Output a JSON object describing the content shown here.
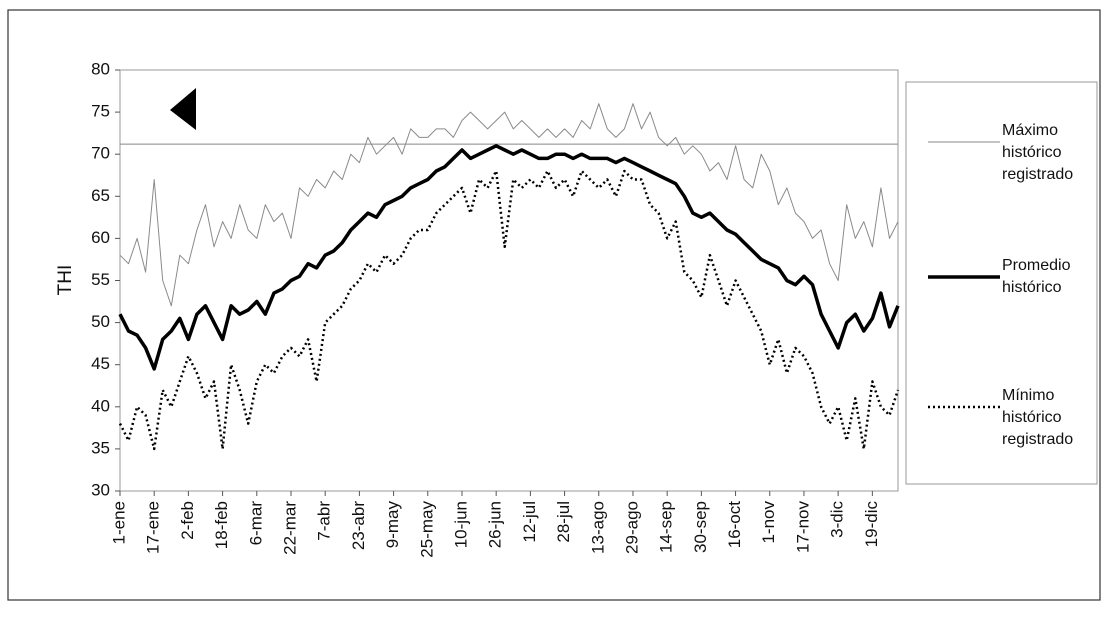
{
  "chart_data": {
    "type": "line",
    "y_label": "THI",
    "categories": [
      "1-ene",
      null,
      null,
      null,
      "17-ene",
      null,
      null,
      null,
      "2-feb",
      null,
      null,
      null,
      "18-feb",
      null,
      null,
      null,
      "6-mar",
      null,
      null,
      null,
      "22-mar",
      null,
      null,
      null,
      "7-abr",
      null,
      null,
      null,
      "23-abr",
      null,
      null,
      null,
      "9-may",
      null,
      null,
      null,
      "25-may",
      null,
      null,
      null,
      "10-jun",
      null,
      null,
      null,
      "26-jun",
      null,
      null,
      null,
      "12-jul",
      null,
      null,
      null,
      "28-jul",
      null,
      null,
      null,
      "13-ago",
      null,
      null,
      null,
      "29-ago",
      null,
      null,
      null,
      "14-sep",
      null,
      null,
      null,
      "30-sep",
      null,
      null,
      null,
      "16-oct",
      null,
      null,
      null,
      "1-nov",
      null,
      null,
      null,
      "17-nov",
      null,
      null,
      null,
      "3-dic",
      null,
      null,
      null,
      "19-dic",
      null,
      null,
      null
    ],
    "series": [
      {
        "name": "Máximo histórico registrado",
        "color": "#8a8a8a",
        "linewidth": 1,
        "linestyle": "solid",
        "values": [
          58,
          57,
          60,
          56,
          67,
          55,
          52,
          58,
          57,
          61,
          64,
          59,
          62,
          60,
          64,
          61,
          60,
          64,
          62,
          63,
          60,
          66,
          65,
          67,
          66,
          68,
          67,
          70,
          69,
          72,
          70,
          71,
          72,
          70,
          73,
          72,
          72,
          73,
          73,
          72,
          74,
          75,
          74,
          73,
          74,
          75,
          73,
          74,
          73,
          72,
          73,
          72,
          73,
          72,
          74,
          73,
          76,
          73,
          72,
          73,
          76,
          73,
          75,
          72,
          71,
          72,
          70,
          71,
          70,
          68,
          69,
          67,
          71,
          67,
          66,
          70,
          68,
          64,
          66,
          63,
          62,
          60,
          61,
          57,
          55,
          64,
          60,
          62,
          59,
          66,
          60,
          62
        ]
      },
      {
        "name": "Promedio histórico",
        "color": "#000000",
        "linewidth": 3.5,
        "linestyle": "solid",
        "values": [
          51,
          49,
          48.5,
          47,
          44.5,
          48,
          49,
          50.5,
          48,
          51,
          52,
          50,
          48,
          52,
          51,
          51.5,
          52.5,
          51,
          53.5,
          54,
          55,
          55.5,
          57,
          56.5,
          58,
          58.5,
          59.5,
          61,
          62,
          63,
          62.5,
          64,
          64.5,
          65,
          66,
          66.5,
          67,
          68,
          68.5,
          69.5,
          70.5,
          69.5,
          70,
          70.5,
          71,
          70.5,
          70,
          70.5,
          70,
          69.5,
          69.5,
          70,
          70,
          69.5,
          70,
          69.5,
          69.5,
          69.5,
          69,
          69.5,
          69,
          68.5,
          68,
          67.5,
          67,
          66.5,
          65,
          63,
          62.5,
          63,
          62,
          61,
          60.5,
          59.5,
          58.5,
          57.5,
          57,
          56.5,
          55,
          54.5,
          55.5,
          54.5,
          51,
          49,
          47,
          50,
          51,
          49,
          50.5,
          53.5,
          49.5,
          52
        ]
      },
      {
        "name": "Mínimo histórico registrado",
        "color": "#000000",
        "linewidth": 2.5,
        "linestyle": "dotted",
        "values": [
          38,
          36,
          40,
          39,
          35,
          42,
          40,
          43,
          46,
          44,
          41,
          43,
          35,
          45,
          42,
          38,
          43,
          45,
          44,
          46,
          47,
          46,
          48,
          43,
          50,
          51,
          52,
          54,
          55,
          57,
          56,
          58,
          57,
          58,
          60,
          61,
          61,
          63,
          64,
          65,
          66,
          63,
          67,
          66,
          68,
          59,
          67,
          66,
          67,
          66,
          68,
          66,
          67,
          65,
          68,
          67,
          66,
          67,
          65,
          68,
          67,
          67,
          64,
          63,
          60,
          62,
          56,
          55,
          53,
          58,
          55,
          52,
          55,
          53,
          51,
          49,
          45,
          48,
          44,
          47,
          46,
          44,
          40,
          38,
          40,
          36,
          41,
          35,
          43,
          40,
          39,
          42
        ]
      }
    ],
    "hline": 71.2,
    "ylim": [
      30,
      80
    ],
    "yticks": [
      30,
      35,
      40,
      45,
      50,
      55,
      60,
      65,
      70,
      75,
      80
    ]
  }
}
